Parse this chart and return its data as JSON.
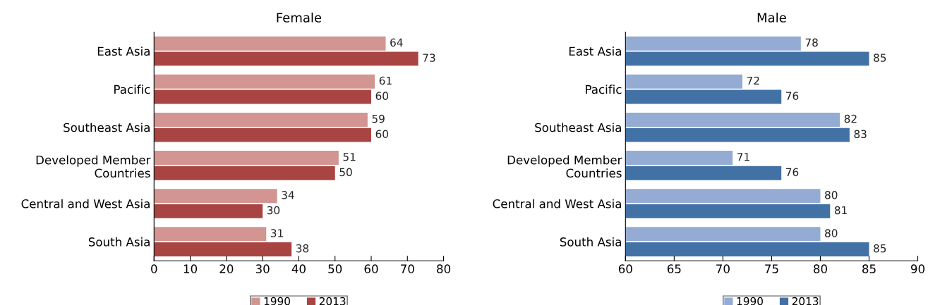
{
  "chart_data": [
    {
      "type": "bar",
      "orientation": "horizontal",
      "title": "Female",
      "categories": [
        "East Asia",
        "Pacific",
        "Southeast Asia",
        "Developed Member\nCountries",
        "Central and West Asia",
        "South Asia"
      ],
      "series": [
        {
          "name": "1990",
          "color": "#d39592",
          "values": [
            64,
            61,
            59,
            51,
            34,
            31
          ]
        },
        {
          "name": "2013",
          "color": "#a84542",
          "values": [
            73,
            60,
            60,
            50,
            30,
            38
          ]
        }
      ],
      "xlim": [
        0,
        80
      ],
      "xticks": [
        0,
        10,
        20,
        30,
        40,
        50,
        60,
        70,
        80
      ],
      "data_labels": true,
      "grid": false,
      "legend": "bottom"
    },
    {
      "type": "bar",
      "orientation": "horizontal",
      "title": "Male",
      "categories": [
        "East Asia",
        "Pacific",
        "Southeast Asia",
        "Developed Member\nCountries",
        "Central and West Asia",
        "South Asia"
      ],
      "series": [
        {
          "name": "1990",
          "color": "#94acd3",
          "values": [
            78,
            72,
            82,
            71,
            80,
            80
          ]
        },
        {
          "name": "2013",
          "color": "#4271a6",
          "values": [
            85,
            76,
            83,
            76,
            81,
            85
          ]
        }
      ],
      "xlim": [
        60,
        90
      ],
      "xticks": [
        60,
        65,
        70,
        75,
        80,
        85,
        90
      ],
      "data_labels": true,
      "grid": false,
      "legend": "bottom"
    }
  ]
}
